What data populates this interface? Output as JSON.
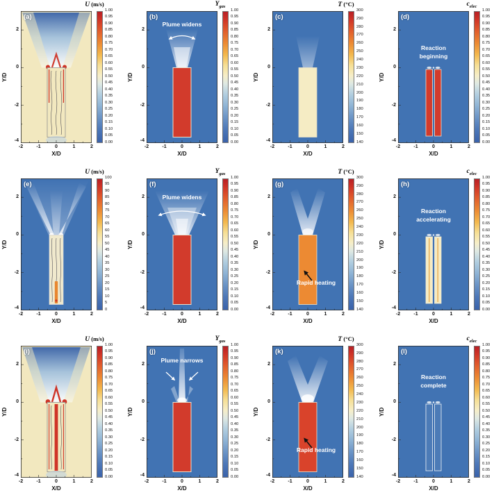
{
  "figure": {
    "xlabel": "X/D",
    "ylabel": "Y/D",
    "x_ticks": [
      "-2",
      "-1",
      "0",
      "1",
      "2"
    ],
    "y_ticks": [
      "2",
      "0",
      "-2",
      "-4"
    ],
    "scales": {
      "unit": [
        "1.00",
        "0.95",
        "0.90",
        "0.85",
        "0.80",
        "0.75",
        "0.70",
        "0.65",
        "0.60",
        "0.55",
        "0.50",
        "0.45",
        "0.40",
        "0.35",
        "0.30",
        "0.25",
        "0.20",
        "0.15",
        "0.10",
        "0.05",
        "0.00"
      ],
      "u100": [
        "100",
        "95",
        "90",
        "85",
        "80",
        "75",
        "70",
        "65",
        "60",
        "55",
        "50",
        "45",
        "40",
        "35",
        "30",
        "25",
        "20",
        "15",
        "10",
        "5",
        "0"
      ],
      "temp300": [
        "300",
        "290",
        "280",
        "270",
        "260",
        "250",
        "240",
        "230",
        "220",
        "210",
        "200",
        "190",
        "180",
        "170",
        "160",
        "150",
        "140"
      ]
    },
    "panels": [
      {
        "id": "a",
        "label": "(a)",
        "scene": "vel_a",
        "cbar": {
          "symbol": "U",
          "sub": "",
          "unit": " (m/s)",
          "scale": "unit"
        },
        "annotation": null
      },
      {
        "id": "b",
        "label": "(b)",
        "scene": "gas_b",
        "cbar": {
          "symbol": "Y",
          "sub": "gas",
          "unit": "",
          "scale": "unit"
        },
        "annotation": {
          "lines": [
            "Plume widens"
          ]
        }
      },
      {
        "id": "c",
        "label": "(c)",
        "scene": "temp_c",
        "cbar": {
          "symbol": "T",
          "sub": "",
          "unit": " (°C)",
          "scale": "temp300"
        },
        "annotation": null
      },
      {
        "id": "d",
        "label": "(d)",
        "scene": "elec_d",
        "cbar": {
          "symbol": "c",
          "sub": "elec",
          "unit": "",
          "scale": "unit"
        },
        "annotation": {
          "lines": [
            "Reaction",
            "beginning"
          ]
        }
      },
      {
        "id": "e",
        "label": "(e)",
        "scene": "vel_e",
        "cbar": {
          "symbol": "U",
          "sub": "",
          "unit": " (m/s)",
          "scale": "u100"
        },
        "annotation": null
      },
      {
        "id": "f",
        "label": "(f)",
        "scene": "gas_f",
        "cbar": {
          "symbol": "Y",
          "sub": "gas",
          "unit": "",
          "scale": "unit"
        },
        "annotation": {
          "lines": [
            "Plume widens"
          ]
        }
      },
      {
        "id": "g",
        "label": "(g)",
        "scene": "temp_g",
        "cbar": {
          "symbol": "T",
          "sub": "",
          "unit": " (°C)",
          "scale": "temp300"
        },
        "annotation": {
          "lines": [
            "Rapid heating"
          ]
        }
      },
      {
        "id": "h",
        "label": "(h)",
        "scene": "elec_h",
        "cbar": {
          "symbol": "c",
          "sub": "elec",
          "unit": "",
          "scale": "unit"
        },
        "annotation": {
          "lines": [
            "Reaction",
            "accelerating"
          ]
        }
      },
      {
        "id": "i",
        "label": "(i)",
        "scene": "vel_i",
        "cbar": {
          "symbol": "U",
          "sub": "",
          "unit": " (m/s)",
          "scale": "unit"
        },
        "annotation": null
      },
      {
        "id": "j",
        "label": "(j)",
        "scene": "gas_j",
        "cbar": {
          "symbol": "Y",
          "sub": "gas",
          "unit": "",
          "scale": "unit"
        },
        "annotation": {
          "lines": [
            "Plume narrows"
          ]
        }
      },
      {
        "id": "k",
        "label": "(k)",
        "scene": "temp_k",
        "cbar": {
          "symbol": "T",
          "sub": "",
          "unit": " (°C)",
          "scale": "temp300"
        },
        "annotation": {
          "lines": [
            "Rapid heating"
          ]
        }
      },
      {
        "id": "l",
        "label": "(l)",
        "scene": "elec_l",
        "cbar": {
          "symbol": "c",
          "sub": "elec",
          "unit": "",
          "scale": "unit"
        },
        "annotation": {
          "lines": [
            "Reaction",
            "complete"
          ]
        }
      }
    ]
  },
  "colors": {
    "background_blue": "#4173b3",
    "hot_red": "#d23b2c",
    "deep_red": "#cf3427",
    "cream": "#f2e8bf",
    "pale_yellow": "#f5ecc4",
    "orange": "#ec8a33",
    "jet_orange": "#e8872f",
    "temp_red": "#d9432b",
    "plume_blue": "#3a63a8",
    "outline_gray": "#909090",
    "annotation_white": "#ffffff"
  },
  "chart_data": [
    {
      "panel": "(a)",
      "type": "heatmap",
      "variable": "U",
      "unit": "m/s",
      "colorbar": {
        "min": 0.0,
        "max": 1.0,
        "step": 0.05
      },
      "x_axis": {
        "label": "X/D",
        "range": [
          -2,
          2
        ],
        "ticks": [
          -2,
          -1,
          0,
          1,
          2
        ]
      },
      "y_axis": {
        "label": "Y/D",
        "range": [
          -4,
          3
        ],
        "ticks": [
          2,
          0,
          -2,
          -4
        ]
      },
      "annotation": null,
      "visual_summary": "Warm ambient field; blue buoyant plume fans upward from the cell vent at Y/D=0; red high-velocity spots at vent lip; recirculating streamlines inside cell"
    },
    {
      "panel": "(b)",
      "type": "heatmap",
      "variable": "Y_gas",
      "unit": "",
      "colorbar": {
        "min": 0.0,
        "max": 1.0,
        "step": 0.05
      },
      "x_axis": {
        "label": "X/D",
        "range": [
          -2,
          2
        ],
        "ticks": [
          -2,
          -1,
          0,
          1,
          2
        ]
      },
      "y_axis": {
        "label": "Y/D",
        "range": [
          -4,
          3
        ],
        "ticks": [
          2,
          0,
          -2,
          -4
        ]
      },
      "annotation": "Plume widens",
      "visual_summary": "Cell interior gas mass fraction 1 (red); white gas plume widens above the vent"
    },
    {
      "panel": "(c)",
      "type": "heatmap",
      "variable": "T",
      "unit": "°C",
      "colorbar": {
        "min": 140,
        "max": 300,
        "step": 10
      },
      "x_axis": {
        "label": "X/D",
        "range": [
          -2,
          2
        ],
        "ticks": [
          -2,
          -1,
          0,
          1,
          2
        ]
      },
      "y_axis": {
        "label": "Y/D",
        "range": [
          -4,
          3
        ],
        "ticks": [
          2,
          0,
          -2,
          -4
        ]
      },
      "annotation": null,
      "visual_summary": "Cell near ~200°C (pale yellow) in cool ambient; faint thermal plume above vent"
    },
    {
      "panel": "(d)",
      "type": "heatmap",
      "variable": "c_elec",
      "unit": "",
      "colorbar": {
        "min": 0.0,
        "max": 1.0,
        "step": 0.05
      },
      "x_axis": {
        "label": "X/D",
        "range": [
          -2,
          2
        ],
        "ticks": [
          -2,
          -1,
          0,
          1,
          2
        ]
      },
      "y_axis": {
        "label": "Y/D",
        "range": [
          -4,
          3
        ],
        "ticks": [
          2,
          0,
          -2,
          -4
        ]
      },
      "annotation": "Reaction beginning",
      "visual_summary": "Electrolyte concentration = 1 (red bars) through jellyroll; reaction just beginning"
    },
    {
      "panel": "(e)",
      "type": "heatmap",
      "variable": "U",
      "unit": "m/s",
      "colorbar": {
        "min": 0,
        "max": 100,
        "step": 5
      },
      "x_axis": {
        "label": "X/D",
        "range": [
          -2,
          2
        ],
        "ticks": [
          -2,
          -1,
          0,
          1,
          2
        ]
      },
      "y_axis": {
        "label": "Y/D",
        "range": [
          -4,
          3
        ],
        "ticks": [
          2,
          0,
          -2,
          -4
        ]
      },
      "annotation": null,
      "visual_summary": "High-speed white jets issue from the vent at angles; pale cell interior with streamlines and orange jet core near cell bottom"
    },
    {
      "panel": "(f)",
      "type": "heatmap",
      "variable": "Y_gas",
      "unit": "",
      "colorbar": {
        "min": 0.0,
        "max": 1.0,
        "step": 0.05
      },
      "x_axis": {
        "label": "X/D",
        "range": [
          -2,
          2
        ],
        "ticks": [
          -2,
          -1,
          0,
          1,
          2
        ]
      },
      "y_axis": {
        "label": "Y/D",
        "range": [
          -4,
          3
        ],
        "ticks": [
          2,
          0,
          -2,
          -4
        ]
      },
      "annotation": "Plume widens",
      "visual_summary": "Gas plume widens further above vent; cell fully gas-filled (red)"
    },
    {
      "panel": "(g)",
      "type": "heatmap",
      "variable": "T",
      "unit": "°C",
      "colorbar": {
        "min": 140,
        "max": 300,
        "step": 10
      },
      "x_axis": {
        "label": "X/D",
        "range": [
          -2,
          2
        ],
        "ticks": [
          -2,
          -1,
          0,
          1,
          2
        ]
      },
      "y_axis": {
        "label": "Y/D",
        "range": [
          -4,
          3
        ],
        "ticks": [
          2,
          0,
          -2,
          -4
        ]
      },
      "annotation": "Rapid heating",
      "visual_summary": "Cell heated to ~250°C (orange); bright vent jets; rapid heating indicated by arrow"
    },
    {
      "panel": "(h)",
      "type": "heatmap",
      "variable": "c_elec",
      "unit": "",
      "colorbar": {
        "min": 0.0,
        "max": 1.0,
        "step": 0.05
      },
      "x_axis": {
        "label": "X/D",
        "range": [
          -2,
          2
        ],
        "ticks": [
          -2,
          -1,
          0,
          1,
          2
        ]
      },
      "y_axis": {
        "label": "Y/D",
        "range": [
          -4,
          3
        ],
        "ticks": [
          2,
          0,
          -2,
          -4
        ]
      },
      "annotation": "Reaction accelerating",
      "visual_summary": "Electrolyte partially consumed (pale yellow bars); reaction accelerating"
    },
    {
      "panel": "(i)",
      "type": "heatmap",
      "variable": "U",
      "unit": "m/s",
      "colorbar": {
        "min": 0.0,
        "max": 1.0,
        "step": 0.05
      },
      "x_axis": {
        "label": "X/D",
        "range": [
          -2,
          2
        ],
        "ticks": [
          -2,
          -1,
          0,
          1,
          2
        ]
      },
      "y_axis": {
        "label": "Y/D",
        "range": [
          -4,
          3
        ],
        "ticks": [
          2,
          0,
          -2,
          -4
        ]
      },
      "annotation": null,
      "visual_summary": "Blue plume fan above vent with red high-velocity core along cell centerline; streamlines inside cell"
    },
    {
      "panel": "(j)",
      "type": "heatmap",
      "variable": "Y_gas",
      "unit": "",
      "colorbar": {
        "min": 0.0,
        "max": 1.0,
        "step": 0.05
      },
      "x_axis": {
        "label": "X/D",
        "range": [
          -2,
          2
        ],
        "ticks": [
          -2,
          -1,
          0,
          1,
          2
        ]
      },
      "y_axis": {
        "label": "Y/D",
        "range": [
          -4,
          3
        ],
        "ticks": [
          2,
          0,
          -2,
          -4
        ]
      },
      "annotation": "Plume narrows",
      "visual_summary": "Gas plume narrows into a single vertical column; cell red"
    },
    {
      "panel": "(k)",
      "type": "heatmap",
      "variable": "T",
      "unit": "°C",
      "colorbar": {
        "min": 140,
        "max": 300,
        "step": 10
      },
      "x_axis": {
        "label": "X/D",
        "range": [
          -2,
          2
        ],
        "ticks": [
          -2,
          -1,
          0,
          1,
          2
        ]
      },
      "y_axis": {
        "label": "Y/D",
        "range": [
          -4,
          3
        ],
        "ticks": [
          2,
          0,
          -2,
          -4
        ]
      },
      "annotation": "Rapid heating",
      "visual_summary": "Cell near ~290°C (red); strong white vent plume; rapid heating indicated by arrow"
    },
    {
      "panel": "(l)",
      "type": "heatmap",
      "variable": "c_elec",
      "unit": "",
      "colorbar": {
        "min": 0.0,
        "max": 1.0,
        "step": 0.05
      },
      "x_axis": {
        "label": "X/D",
        "range": [
          -2,
          2
        ],
        "ticks": [
          -2,
          -1,
          0,
          1,
          2
        ]
      },
      "y_axis": {
        "label": "Y/D",
        "range": [
          -4,
          3
        ],
        "ticks": [
          2,
          0,
          -2,
          -4
        ]
      },
      "annotation": "Reaction complete",
      "visual_summary": "Electrolyte fully consumed (c=0, background blue, outline only); reaction complete"
    }
  ]
}
